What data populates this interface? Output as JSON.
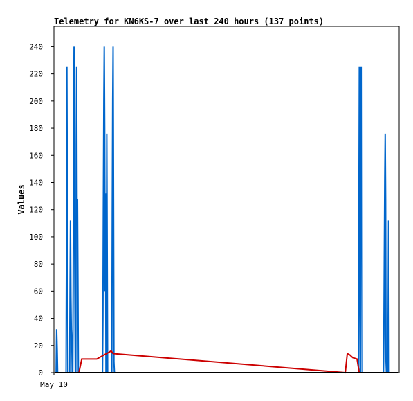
{
  "chart_data": {
    "type": "line",
    "title": "Telemetry for KN6KS-7 over last 240 hours (137 points)",
    "xlabel": "",
    "ylabel": "Values",
    "x_tick_labels": [
      "May 10"
    ],
    "xlim": [
      0,
      240
    ],
    "ylim": [
      0,
      255
    ],
    "y_ticks": [
      0,
      20,
      40,
      60,
      80,
      100,
      120,
      140,
      160,
      180,
      200,
      220,
      240
    ],
    "grid": false,
    "legend": "none",
    "series": [
      {
        "color": "#0066cc",
        "points": [
          [
            0.6,
            0
          ],
          [
            0.9,
            32
          ],
          [
            1.3,
            16
          ],
          [
            1.6,
            0
          ],
          [
            7.5,
            0
          ],
          [
            7.8,
            88
          ],
          [
            8.1,
            225
          ],
          [
            8.4,
            112
          ],
          [
            8.7,
            0
          ],
          [
            10.0,
            0
          ],
          [
            10.3,
            64
          ],
          [
            10.6,
            112
          ],
          [
            10.9,
            56
          ],
          [
            11.2,
            32
          ],
          [
            11.5,
            24
          ],
          [
            11.8,
            0
          ],
          [
            12.2,
            0
          ],
          [
            12.5,
            64
          ],
          [
            12.8,
            184
          ],
          [
            13.1,
            240
          ],
          [
            13.4,
            120
          ],
          [
            13.7,
            56
          ],
          [
            14.0,
            0
          ],
          [
            14.3,
            0
          ],
          [
            14.6,
            168
          ],
          [
            14.9,
            225
          ],
          [
            15.2,
            112
          ],
          [
            15.5,
            128
          ],
          [
            15.8,
            64
          ],
          [
            16.1,
            0
          ],
          [
            33.0,
            0
          ],
          [
            33.3,
            40
          ],
          [
            33.6,
            120
          ],
          [
            33.9,
            200
          ],
          [
            34.2,
            240
          ],
          [
            34.5,
            180
          ],
          [
            34.8,
            60
          ],
          [
            35.1,
            132
          ],
          [
            35.4,
            0
          ],
          [
            35.7,
            0
          ],
          [
            36.0,
            176
          ],
          [
            36.3,
            88
          ],
          [
            36.6,
            0
          ],
          [
            39.5,
            0
          ],
          [
            39.8,
            120
          ],
          [
            40.1,
            200
          ],
          [
            40.4,
            240
          ],
          [
            40.7,
            128
          ],
          [
            41.0,
            8
          ],
          [
            41.3,
            0
          ],
          [
            212.0,
            0
          ],
          [
            212.3,
            112
          ],
          [
            212.6,
            225
          ],
          [
            212.9,
            112
          ],
          [
            213.2,
            0
          ],
          [
            213.5,
            0
          ],
          [
            213.8,
            225
          ],
          [
            214.1,
            112
          ],
          [
            214.4,
            225
          ],
          [
            214.7,
            0
          ],
          [
            229.5,
            0
          ],
          [
            229.8,
            28
          ],
          [
            230.1,
            84
          ],
          [
            230.4,
            144
          ],
          [
            230.7,
            176
          ],
          [
            231.0,
            128
          ],
          [
            231.3,
            8
          ],
          [
            231.6,
            0
          ],
          [
            232.5,
            0
          ],
          [
            232.8,
            48
          ],
          [
            233.1,
            112
          ],
          [
            233.4,
            0
          ]
        ]
      },
      {
        "color": "#cc0000",
        "points": [
          [
            16.5,
            0
          ],
          [
            18.5,
            10
          ],
          [
            29.0,
            10
          ],
          [
            34.0,
            13
          ],
          [
            37.5,
            15
          ],
          [
            39.0,
            16
          ],
          [
            40.5,
            14
          ],
          [
            202.8,
            0
          ],
          [
            204.2,
            14
          ],
          [
            206.0,
            13
          ],
          [
            208.0,
            11
          ],
          [
            211.0,
            10
          ],
          [
            212.5,
            0
          ]
        ]
      },
      {
        "color": "#000000",
        "points": [
          [
            0,
            0
          ],
          [
            240,
            0
          ]
        ]
      }
    ]
  }
}
